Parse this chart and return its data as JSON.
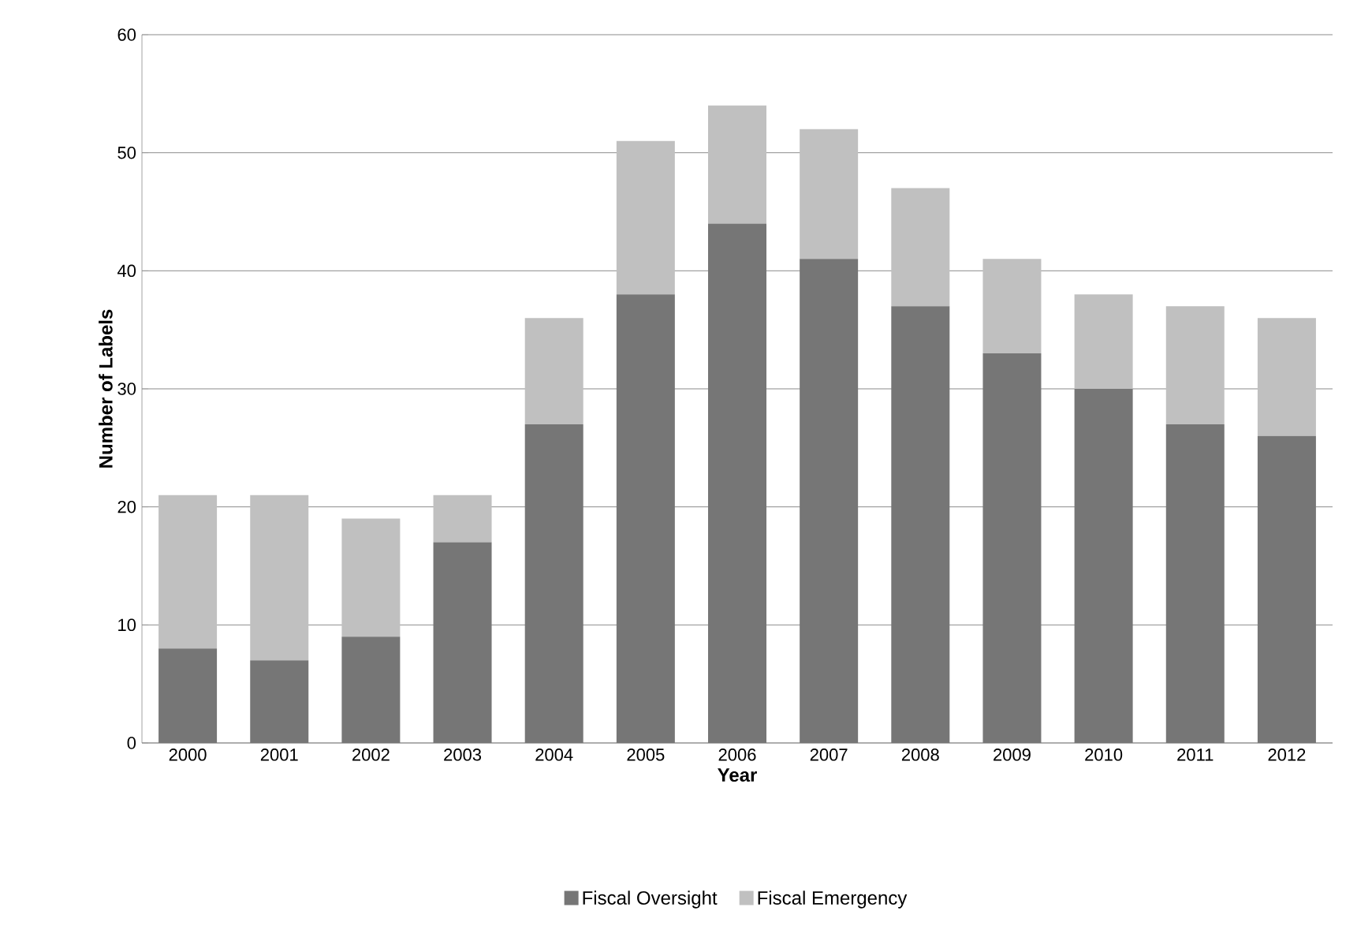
{
  "chart_data": {
    "type": "bar",
    "stacked": true,
    "xlabel": "Year",
    "ylabel": "Number of Labels",
    "categories": [
      "2000",
      "2001",
      "2002",
      "2003",
      "2004",
      "2005",
      "2006",
      "2007",
      "2008",
      "2009",
      "2010",
      "2011",
      "2012"
    ],
    "series": [
      {
        "name": "Fiscal Oversight",
        "color": "#767676",
        "values": [
          8,
          7,
          9,
          17,
          27,
          38,
          44,
          41,
          37,
          33,
          30,
          27,
          26
        ]
      },
      {
        "name": "Fiscal Emergency",
        "color": "#c0c0c0",
        "values": [
          13,
          14,
          10,
          4,
          9,
          13,
          10,
          11,
          10,
          8,
          8,
          10,
          10
        ]
      }
    ],
    "ylim": [
      0,
      60
    ],
    "yticks": [
      0,
      10,
      20,
      30,
      40,
      50,
      60
    ],
    "grid": "y",
    "legend": "bottom"
  }
}
